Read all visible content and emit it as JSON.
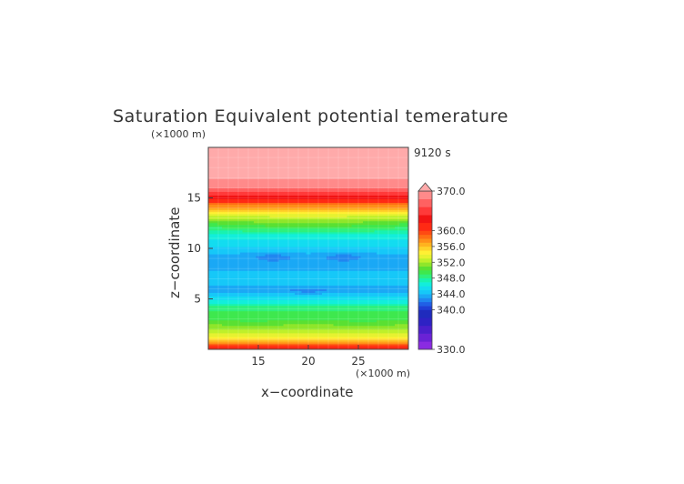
{
  "chart_data": {
    "type": "heatmap",
    "title": "Saturation Equivalent potential temerature",
    "time_label": "9120 s",
    "xlabel": "x−coordinate",
    "ylabel": "z−coordinate",
    "x_unit": "(×1000 m)",
    "y_unit": "(×1000 m)",
    "xlim": [
      10,
      30
    ],
    "ylim": [
      0,
      20
    ],
    "x_ticks": [
      "15",
      "20",
      "25"
    ],
    "y_ticks": [
      "5",
      "10",
      "15"
    ],
    "colorbar": {
      "min": 330.0,
      "max": 370.0,
      "labels": [
        "370.0",
        "360.0",
        "356.0",
        "352.0",
        "348.0",
        "344.0",
        "340.0",
        "330.0"
      ],
      "levels": [
        330,
        332,
        334,
        336,
        338,
        340,
        341,
        342,
        343,
        344,
        345,
        346,
        347,
        348,
        349,
        350,
        351,
        352,
        353,
        354,
        355,
        356,
        357,
        358,
        359,
        360,
        362,
        364,
        366,
        368,
        370
      ],
      "colors": [
        "#8a2be2",
        "#6a22d6",
        "#4b1fcc",
        "#2e22c4",
        "#1f2bbd",
        "#1f3fd6",
        "#2060e6",
        "#2086f0",
        "#1aa8f5",
        "#16c8f8",
        "#13dcf0",
        "#12eedb",
        "#18f2b0",
        "#2ef07c",
        "#3ee84e",
        "#5ae032",
        "#8fe62a",
        "#bff02a",
        "#e6f230",
        "#fff033",
        "#ffd22a",
        "#ffb21f",
        "#ff8f18",
        "#ff6e14",
        "#ff4a12",
        "#ff2a14",
        "#f21414",
        "#ff3a3a",
        "#ff6161",
        "#ff8a8a",
        "#ffaaaa"
      ],
      "overflow_color": "#ffaaaa"
    },
    "profile": {
      "z": [
        0.0,
        0.25,
        0.6,
        0.9,
        1.2,
        1.6,
        2.0,
        2.5,
        3.0,
        3.4,
        3.8,
        4.3,
        4.8,
        5.3,
        5.8,
        6.3,
        7.0,
        7.8,
        8.6,
        9.4,
        10.2,
        11.0,
        11.8,
        12.5,
        13.2,
        13.8,
        14.3,
        14.8,
        15.3,
        16.0,
        17.0,
        18.5,
        20.0
      ],
      "theta_es": [
        360,
        361.5,
        358,
        356,
        354.5,
        353,
        352,
        351,
        350,
        349.5,
        349,
        348,
        346.5,
        345,
        343.5,
        344,
        344.5,
        344,
        343.5,
        344,
        345,
        346,
        348,
        350,
        353,
        356,
        358,
        361,
        364,
        368,
        370,
        370,
        370
      ]
    },
    "grid": true
  }
}
